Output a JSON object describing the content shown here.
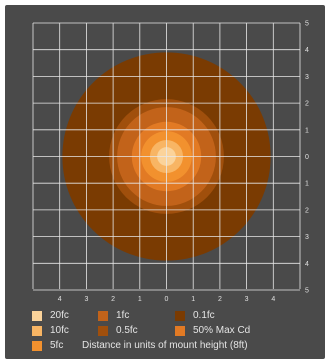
{
  "chart_data": {
    "type": "isofootcandle",
    "x_ticks": [
      "4",
      "3",
      "2",
      "1",
      "0",
      "1",
      "2",
      "3",
      "4"
    ],
    "y_ticks": [
      "5",
      "4",
      "3",
      "2",
      "1",
      "0",
      "1",
      "2",
      "3",
      "4",
      "5"
    ],
    "xlim": [
      -5,
      5
    ],
    "ylim": [
      -5,
      5
    ],
    "grid": true,
    "contours": [
      {
        "label": "0.1fc",
        "radius": 3.9,
        "color": "#7a3b02"
      },
      {
        "label": "0.5fc",
        "radius": 2.15,
        "color": "#a04f0c"
      },
      {
        "label": "1fc",
        "radius": 1.85,
        "color": "#c2631a"
      },
      {
        "label": "50% Max Cd",
        "radius": 1.3,
        "color": "#e27a24"
      },
      {
        "label": "5fc",
        "radius": 0.95,
        "color": "#f2912e"
      },
      {
        "label": "10fc",
        "radius": 0.62,
        "color": "#f8b564"
      },
      {
        "label": "20fc",
        "radius": 0.35,
        "color": "#fbd39a"
      }
    ],
    "legend": [
      {
        "label": "20fc",
        "color": "#fbd39a"
      },
      {
        "label": "1fc",
        "color": "#c2631a"
      },
      {
        "label": "0.1fc",
        "color": "#7a3b02"
      },
      {
        "label": "10fc",
        "color": "#f8b564"
      },
      {
        "label": "0.5fc",
        "color": "#a04f0c"
      },
      {
        "label": "50% Max Cd",
        "color": "#e27a24"
      },
      {
        "label": "5fc",
        "color": "#f2912e"
      }
    ],
    "xlabel": "Distance in units of mount height (8ft)"
  }
}
